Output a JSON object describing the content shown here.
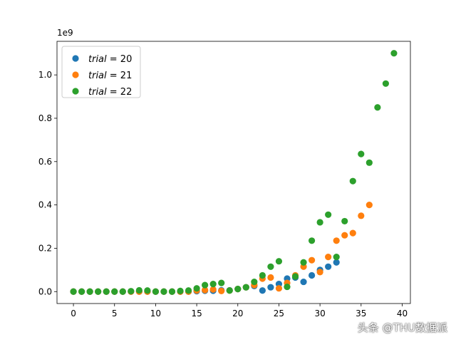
{
  "chart_data": {
    "type": "scatter",
    "title": "",
    "xlabel": "",
    "ylabel": "",
    "xlim": [
      -2.0,
      41.0
    ],
    "ylim": [
      -0.055,
      1.155
    ],
    "y_scale_label": "1e9",
    "x_ticks": [
      0,
      5,
      10,
      15,
      20,
      25,
      30,
      35,
      40
    ],
    "x_tick_labels": [
      "0",
      "5",
      "10",
      "15",
      "20",
      "25",
      "30",
      "35",
      "40"
    ],
    "y_ticks": [
      0.0,
      0.2,
      0.4,
      0.6,
      0.8,
      1.0
    ],
    "y_tick_labels": [
      "0.0",
      "0.2",
      "0.4",
      "0.6",
      "0.8",
      "1.0"
    ],
    "grid": false,
    "legend_position": "top-left",
    "series": [
      {
        "name": "trial = 20",
        "legend_var": "trial",
        "legend_eq": " = 20",
        "color": "#1f77b4",
        "x": [
          0,
          1,
          2,
          3,
          4,
          5,
          6,
          7,
          8,
          9,
          10,
          11,
          12,
          13,
          14,
          15,
          16,
          17,
          18,
          19,
          20,
          21,
          22,
          23,
          24,
          25,
          26,
          27,
          28,
          29,
          30,
          31,
          32
        ],
        "y": [
          0,
          0,
          0,
          0,
          0,
          0,
          0,
          0,
          0,
          0,
          0,
          0,
          0,
          0,
          0,
          0.002,
          0.004,
          0.004,
          0.006,
          0.006,
          0.012,
          0.02,
          0.026,
          0.005,
          0.02,
          0.035,
          0.06,
          0.065,
          0.045,
          0.075,
          0.1,
          0.115,
          0.135
        ]
      },
      {
        "name": "trial = 21",
        "legend_var": "trial",
        "legend_eq": " = 21",
        "color": "#ff7f0e",
        "x": [
          0,
          1,
          2,
          3,
          4,
          5,
          6,
          7,
          8,
          9,
          10,
          11,
          12,
          13,
          14,
          15,
          16,
          17,
          18,
          19,
          20,
          21,
          22,
          23,
          24,
          25,
          26,
          27,
          28,
          29,
          30,
          31,
          32,
          33,
          34,
          35,
          36
        ],
        "y": [
          0,
          0,
          0,
          0,
          0,
          0,
          0,
          0,
          0,
          0,
          0,
          0,
          0,
          0,
          0,
          0.005,
          0.007,
          0.01,
          0.003,
          0.005,
          0.012,
          0.02,
          0.03,
          0.06,
          0.065,
          0.015,
          0.04,
          0.075,
          0.115,
          0.145,
          0.09,
          0.16,
          0.235,
          0.26,
          0.27,
          0.35,
          0.4
        ]
      },
      {
        "name": "trial = 22",
        "legend_var": "trial",
        "legend_eq": " = 22",
        "color": "#2ca02c",
        "x": [
          0,
          1,
          2,
          3,
          4,
          5,
          6,
          7,
          8,
          9,
          10,
          11,
          12,
          13,
          14,
          15,
          16,
          17,
          18,
          19,
          20,
          21,
          22,
          23,
          24,
          25,
          26,
          27,
          28,
          29,
          30,
          31,
          32,
          33,
          34,
          35,
          36,
          37,
          38,
          39
        ],
        "y": [
          0,
          0,
          0,
          0,
          0,
          0,
          0,
          0.002,
          0.006,
          0.005,
          0,
          0,
          0,
          0.003,
          0.005,
          0.015,
          0.03,
          0.035,
          0.04,
          0.005,
          0.012,
          0.02,
          0.045,
          0.075,
          0.115,
          0.14,
          0.022,
          0.07,
          0.135,
          0.235,
          0.32,
          0.355,
          0.16,
          0.325,
          0.51,
          0.635,
          0.595,
          0.85,
          0.96,
          1.1
        ]
      }
    ]
  },
  "watermark": "头条 @THU数据派"
}
